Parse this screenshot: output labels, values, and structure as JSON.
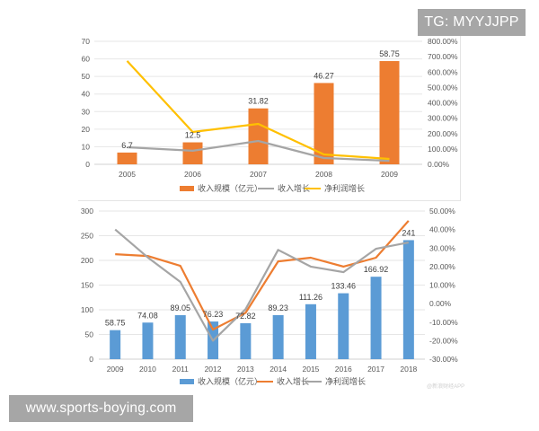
{
  "watermarks": {
    "top_right": "TG: MYYJJPP",
    "bottom_left": "www.sports-boying.com",
    "bottom_right_faint": "@新浪财经APP"
  },
  "chart_data": [
    {
      "type": "bar+line",
      "title": "",
      "categories": [
        "2005",
        "2006",
        "2007",
        "2008",
        "2009"
      ],
      "series": [
        {
          "name": "收入规模（亿元）",
          "type": "bar",
          "axis": "left",
          "color": "#ED7D31",
          "values": [
            6.7,
            12.5,
            31.82,
            46.27,
            58.75
          ],
          "data_labels": [
            "6.7",
            "12.5",
            "31.82",
            "46.27",
            "58.75"
          ]
        },
        {
          "name": "收入增长",
          "type": "line",
          "axis": "right",
          "color": "#A5A5A5",
          "values": [
            111,
            88,
            152,
            41,
            23
          ]
        },
        {
          "name": "净利润增长",
          "type": "line",
          "axis": "right",
          "color": "#FFC000",
          "values": [
            672,
            210,
            263,
            64,
            35
          ]
        }
      ],
      "left_axis": {
        "ticks": [
          "0",
          "10",
          "20",
          "30",
          "40",
          "50",
          "60",
          "70"
        ],
        "ylim": [
          0,
          70
        ]
      },
      "right_axis": {
        "ticks": [
          "0.00%",
          "100.00%",
          "200.00%",
          "300.00%",
          "400.00%",
          "500.00%",
          "600.00%",
          "700.00%",
          "800.00%"
        ],
        "ylim": [
          0,
          800
        ],
        "unit": "%"
      },
      "grid": true,
      "legend_position": "bottom",
      "legend": [
        "收入规模（亿元）",
        "收入增长",
        "净利润增长"
      ]
    },
    {
      "type": "bar+line",
      "title": "",
      "categories": [
        "2009",
        "2010",
        "2011",
        "2012",
        "2013",
        "2014",
        "2015",
        "2016",
        "2017",
        "2018"
      ],
      "series": [
        {
          "name": "收入规模（亿元）",
          "type": "bar",
          "axis": "left",
          "color": "#5B9BD5",
          "values": [
            58.75,
            74.08,
            89.05,
            76.23,
            72.82,
            89.23,
            111.26,
            133.46,
            166.92,
            241
          ],
          "data_labels": [
            "58.75",
            "74.08",
            "89.05",
            "76.23",
            "72.82",
            "89.23",
            "111.26",
            "133.46",
            "166.92",
            "241"
          ]
        },
        {
          "name": "收入增长",
          "type": "line",
          "axis": "right",
          "color": "#ED7D31",
          "values": [
            26.7,
            25.7,
            20.4,
            -14,
            -5,
            22.8,
            24.8,
            20,
            24.8,
            44.7
          ]
        },
        {
          "name": "净利润增长",
          "type": "line",
          "axis": "right",
          "color": "#A5A5A5",
          "values": [
            40,
            25,
            11.7,
            -20,
            -3,
            29,
            20,
            17,
            29.6,
            33
          ]
        }
      ],
      "left_axis": {
        "ticks": [
          "0",
          "50",
          "100",
          "150",
          "200",
          "250",
          "300"
        ],
        "ylim": [
          0,
          300
        ]
      },
      "right_axis": {
        "ticks": [
          "-30.00%",
          "-20.00%",
          "-10.00%",
          "0.00%",
          "10.00%",
          "20.00%",
          "30.00%",
          "40.00%",
          "50.00%"
        ],
        "ylim": [
          -30,
          50
        ],
        "unit": "%"
      },
      "grid": true,
      "legend_position": "bottom",
      "legend": [
        "收入规模（亿元）",
        "收入增长",
        "净利润增长"
      ]
    }
  ]
}
